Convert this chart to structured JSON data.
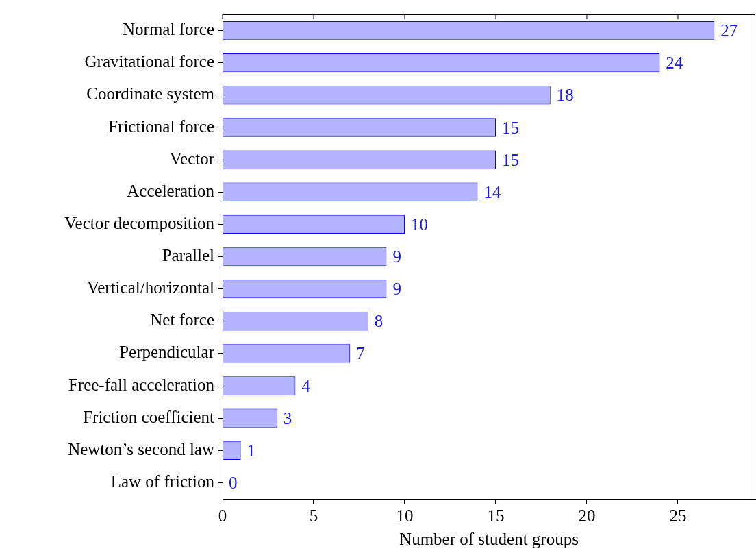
{
  "chart_data": {
    "type": "bar",
    "orientation": "horizontal",
    "xlabel": "Number of student groups",
    "categories": [
      "Normal force",
      "Gravitational force",
      "Coordinate system",
      "Frictional force",
      "Vector",
      "Acceleration",
      "Vector decomposition",
      "Parallel",
      "Vertical/horizontal",
      "Net force",
      "Perpendicular",
      "Free-fall acceleration",
      "Friction coefficient",
      "Newton’s second law",
      "Law of friction"
    ],
    "values": [
      27,
      24,
      18,
      15,
      15,
      14,
      10,
      9,
      9,
      8,
      7,
      4,
      3,
      1,
      0
    ],
    "color": "#b3b3ff",
    "data_labels": true,
    "xlim": [
      0,
      29.25
    ],
    "xticks": [
      0,
      5,
      10,
      15,
      20,
      25
    ],
    "grid": false,
    "legend": false
  }
}
